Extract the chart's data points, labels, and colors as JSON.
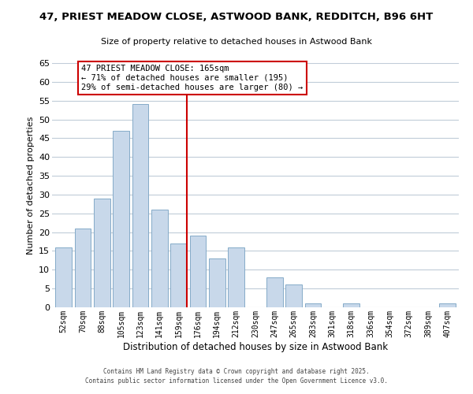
{
  "title": "47, PRIEST MEADOW CLOSE, ASTWOOD BANK, REDDITCH, B96 6HT",
  "subtitle": "Size of property relative to detached houses in Astwood Bank",
  "xlabel": "Distribution of detached houses by size in Astwood Bank",
  "ylabel": "Number of detached properties",
  "bar_color": "#c8d8ea",
  "bar_edge_color": "#85aac8",
  "categories": [
    "52sqm",
    "70sqm",
    "88sqm",
    "105sqm",
    "123sqm",
    "141sqm",
    "159sqm",
    "176sqm",
    "194sqm",
    "212sqm",
    "230sqm",
    "247sqm",
    "265sqm",
    "283sqm",
    "301sqm",
    "318sqm",
    "336sqm",
    "354sqm",
    "372sqm",
    "389sqm",
    "407sqm"
  ],
  "values": [
    16,
    21,
    29,
    47,
    54,
    26,
    17,
    19,
    13,
    16,
    0,
    8,
    6,
    1,
    0,
    1,
    0,
    0,
    0,
    0,
    1
  ],
  "ylim": [
    0,
    65
  ],
  "yticks": [
    0,
    5,
    10,
    15,
    20,
    25,
    30,
    35,
    40,
    45,
    50,
    55,
    60,
    65
  ],
  "vline_index": 6,
  "vline_color": "#cc0000",
  "annotation_title": "47 PRIEST MEADOW CLOSE: 165sqm",
  "annotation_line1": "← 71% of detached houses are smaller (195)",
  "annotation_line2": "29% of semi-detached houses are larger (80) →",
  "annotation_box_color": "#ffffff",
  "annotation_box_edge": "#cc0000",
  "footer1": "Contains HM Land Registry data © Crown copyright and database right 2025.",
  "footer2": "Contains public sector information licensed under the Open Government Licence v3.0.",
  "background_color": "#ffffff",
  "grid_color": "#c0ccd8"
}
